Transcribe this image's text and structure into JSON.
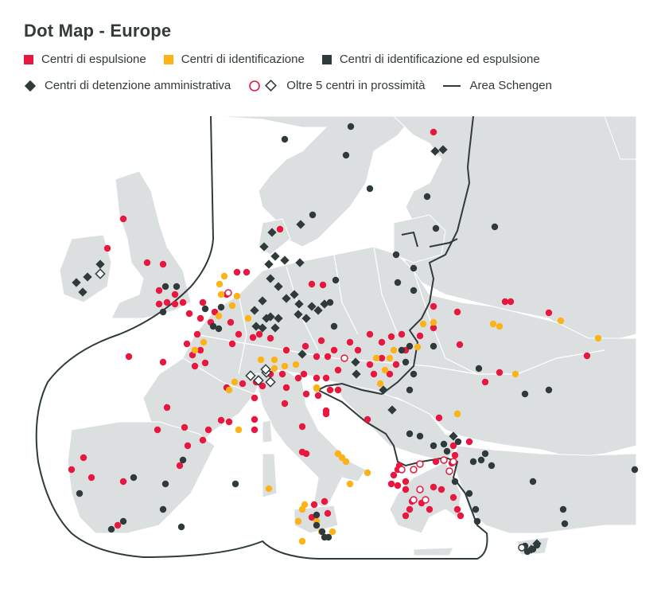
{
  "title": "Dot Map - Europe",
  "legend": {
    "expulsion": "Centri di espulsione",
    "identification": "Centri di identificazione",
    "ident_expulsion": "Centri di identificazione ed espulsione",
    "detention": "Centri di detenzione amministrativa",
    "cluster": "Oltre 5 centri in prossimità",
    "schengen": "Area Schengen"
  },
  "colors": {
    "expulsion": "#e8173f",
    "identification": "#fbb317",
    "ident_expulsion": "#2f3b3b",
    "detention": "#2f3b3b",
    "land": "#dcdfe0",
    "border": "#ffffff",
    "schengen_line": "#2f3b3b"
  },
  "icons": [
    "red-square-icon",
    "yellow-square-icon",
    "dark-square-icon",
    "dark-diamond-icon",
    "hollow-circle-icon",
    "hollow-diamond-icon",
    "line-icon"
  ]
}
